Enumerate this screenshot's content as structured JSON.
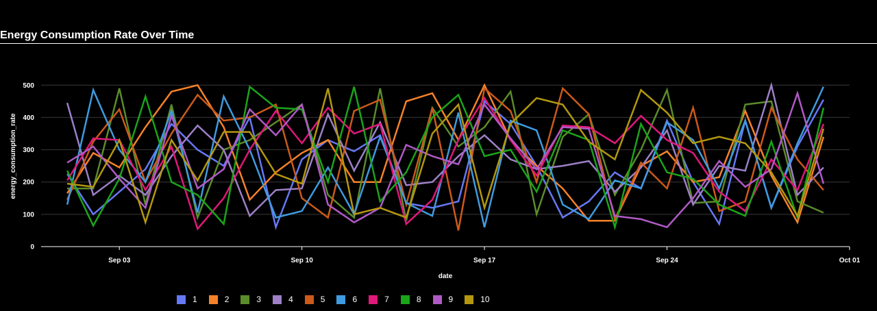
{
  "chart_data": {
    "type": "line",
    "title": "Energy Consumption Rate Over Time",
    "xlabel": "date",
    "ylabel": "energy_consumption_rate",
    "x": [
      "2023-09-01",
      "2023-09-02",
      "2023-09-03",
      "2023-09-04",
      "2023-09-05",
      "2023-09-06",
      "2023-09-07",
      "2023-09-08",
      "2023-09-09",
      "2023-09-10",
      "2023-09-11",
      "2023-09-12",
      "2023-09-13",
      "2023-09-14",
      "2023-09-15",
      "2023-09-16",
      "2023-09-17",
      "2023-09-18",
      "2023-09-19",
      "2023-09-20",
      "2023-09-21",
      "2023-09-22",
      "2023-09-23",
      "2023-09-24",
      "2023-09-25",
      "2023-09-26",
      "2023-09-27",
      "2023-09-28",
      "2023-09-29",
      "2023-09-30"
    ],
    "x_ticks": [
      {
        "date": "2023-09-03",
        "label": "Sep 03"
      },
      {
        "date": "2023-09-10",
        "label": "Sep 10"
      },
      {
        "date": "2023-09-17",
        "label": "Sep 17"
      },
      {
        "date": "2023-09-24",
        "label": "Sep 24"
      },
      {
        "date": "2023-10-01",
        "label": "Oct 01"
      }
    ],
    "xlim": [
      "2023-08-31",
      "2023-10-01"
    ],
    "ylim": [
      0,
      560
    ],
    "y_ticks": [
      0,
      100,
      200,
      300,
      400,
      500
    ],
    "grid": true,
    "legend_position": "bottom",
    "series": [
      {
        "name": "1",
        "color": "#6678f5",
        "values": [
          225,
          100,
          170,
          240,
          380,
          300,
          250,
          400,
          60,
          270,
          330,
          295,
          345,
          135,
          120,
          140,
          450,
          380,
          250,
          90,
          140,
          230,
          180,
          390,
          200,
          70,
          390,
          120,
          310,
          455
        ]
      },
      {
        "name": "2",
        "color": "#f5822a",
        "values": [
          165,
          290,
          245,
          370,
          480,
          500,
          370,
          145,
          230,
          290,
          330,
          200,
          200,
          450,
          475,
          330,
          500,
          330,
          250,
          180,
          80,
          80,
          250,
          295,
          200,
          215,
          420,
          220,
          75,
          340
        ]
      },
      {
        "name": "3",
        "color": "#5b8c2a",
        "values": [
          180,
          180,
          490,
          130,
          440,
          90,
          300,
          330,
          385,
          440,
          160,
          90,
          490,
          80,
          430,
          310,
          370,
          480,
          100,
          340,
          410,
          160,
          300,
          485,
          135,
          140,
          440,
          450,
          140,
          105
        ]
      },
      {
        "name": "4",
        "color": "#9d80c7",
        "values": [
          445,
          160,
          220,
          160,
          280,
          375,
          300,
          95,
          175,
          180,
          410,
          235,
          385,
          190,
          200,
          280,
          345,
          270,
          240,
          250,
          265,
          170,
          245,
          360,
          130,
          250,
          235,
          500,
          160,
          245
        ]
      },
      {
        "name": "5",
        "color": "#cc5a1a",
        "values": [
          145,
          325,
          425,
          200,
          350,
          470,
          390,
          400,
          440,
          150,
          90,
          420,
          455,
          130,
          430,
          50,
          490,
          420,
          200,
          490,
          410,
          85,
          260,
          180,
          430,
          110,
          140,
          430,
          270,
          175
        ]
      },
      {
        "name": "6",
        "color": "#3f9be0",
        "values": [
          130,
          485,
          300,
          200,
          420,
          105,
          465,
          300,
          90,
          110,
          245,
          100,
          340,
          135,
          95,
          415,
          60,
          390,
          360,
          130,
          85,
          205,
          180,
          385,
          330,
          180,
          390,
          120,
          320,
          495
        ]
      },
      {
        "name": "7",
        "color": "#e0187a",
        "values": [
          205,
          335,
          330,
          175,
          310,
          55,
          150,
          300,
          420,
          320,
          430,
          350,
          380,
          70,
          145,
          330,
          460,
          330,
          220,
          375,
          370,
          320,
          405,
          330,
          290,
          170,
          110,
          270,
          175,
          380
        ]
      },
      {
        "name": "8",
        "color": "#1aa51a",
        "values": [
          235,
          65,
          210,
          465,
          200,
          160,
          70,
          495,
          430,
          425,
          200,
          495,
          140,
          230,
          400,
          470,
          280,
          300,
          170,
          360,
          330,
          60,
          380,
          230,
          210,
          130,
          95,
          325,
          90,
          430
        ]
      },
      {
        "name": "9",
        "color": "#b05ac7",
        "values": [
          260,
          310,
          210,
          120,
          405,
          180,
          240,
          425,
          345,
          440,
          130,
          75,
          120,
          315,
          280,
          255,
          440,
          335,
          240,
          370,
          365,
          95,
          85,
          60,
          150,
          265,
          185,
          240,
          475,
          195
        ]
      },
      {
        "name": "10",
        "color": "#b3980f",
        "values": [
          195,
          185,
          330,
          75,
          330,
          205,
          355,
          355,
          225,
          195,
          490,
          100,
          120,
          90,
          350,
          440,
          120,
          380,
          460,
          440,
          325,
          270,
          485,
          415,
          320,
          340,
          320,
          230,
          95,
          365
        ]
      }
    ]
  }
}
